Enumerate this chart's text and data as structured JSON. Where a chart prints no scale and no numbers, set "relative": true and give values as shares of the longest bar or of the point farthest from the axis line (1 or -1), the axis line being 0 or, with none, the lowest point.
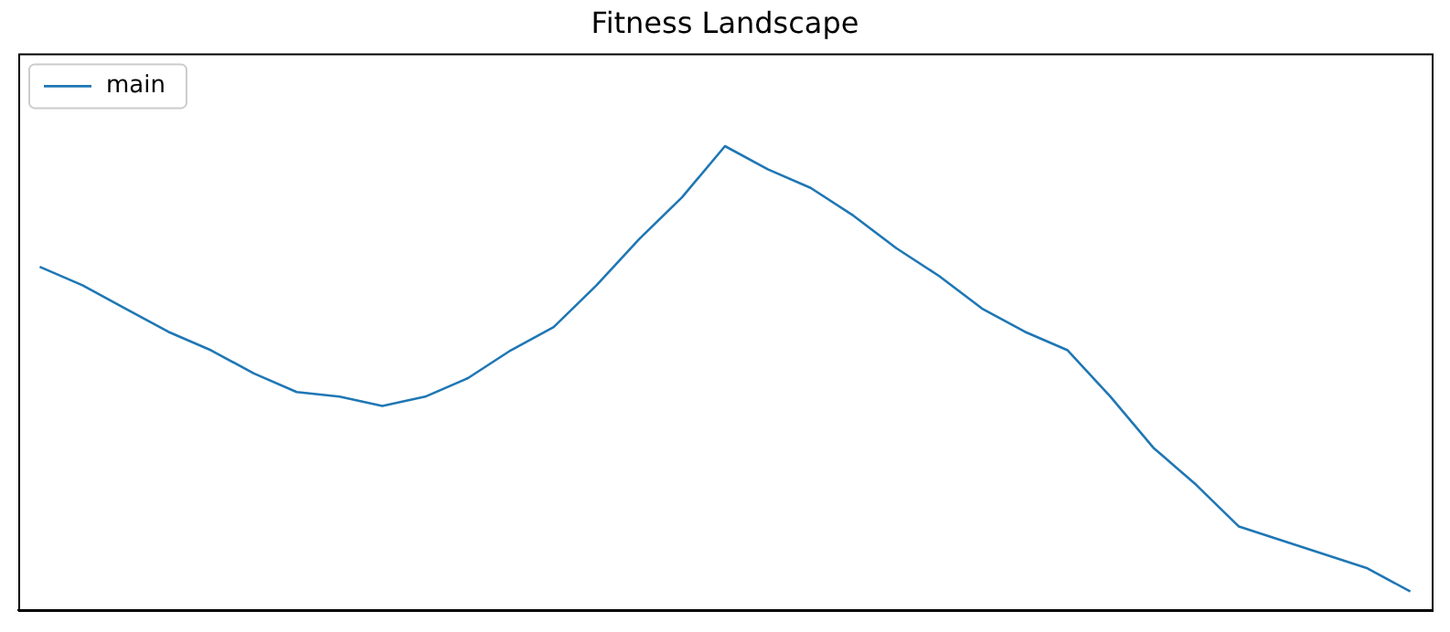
{
  "chart_data": {
    "type": "line",
    "title": "Fitness Landscape",
    "relative": true,
    "legend": "top left",
    "grid": false,
    "marker": "none",
    "line_style": "solid",
    "categories": [
      null,
      null,
      null,
      null,
      null,
      null,
      null,
      null,
      null,
      null,
      null,
      null,
      null,
      null,
      null,
      null,
      null,
      null,
      null,
      null,
      null,
      null,
      null,
      null,
      null,
      null,
      null,
      null,
      null,
      null,
      null,
      null,
      null
    ],
    "series": [
      {
        "name": "main",
        "color": "#1f77b4",
        "values": [
          0.74,
          0.7,
          0.65,
          0.6,
          0.56,
          0.51,
          0.47,
          0.46,
          0.44,
          0.46,
          0.5,
          0.56,
          0.61,
          0.7,
          0.8,
          0.89,
          1,
          0.95,
          0.91,
          0.85,
          0.78,
          0.72,
          0.65,
          0.6,
          0.56,
          0.46,
          0.35,
          0.27,
          0.18,
          0.15,
          0.12,
          0.09,
          0.04
        ]
      }
    ]
  }
}
